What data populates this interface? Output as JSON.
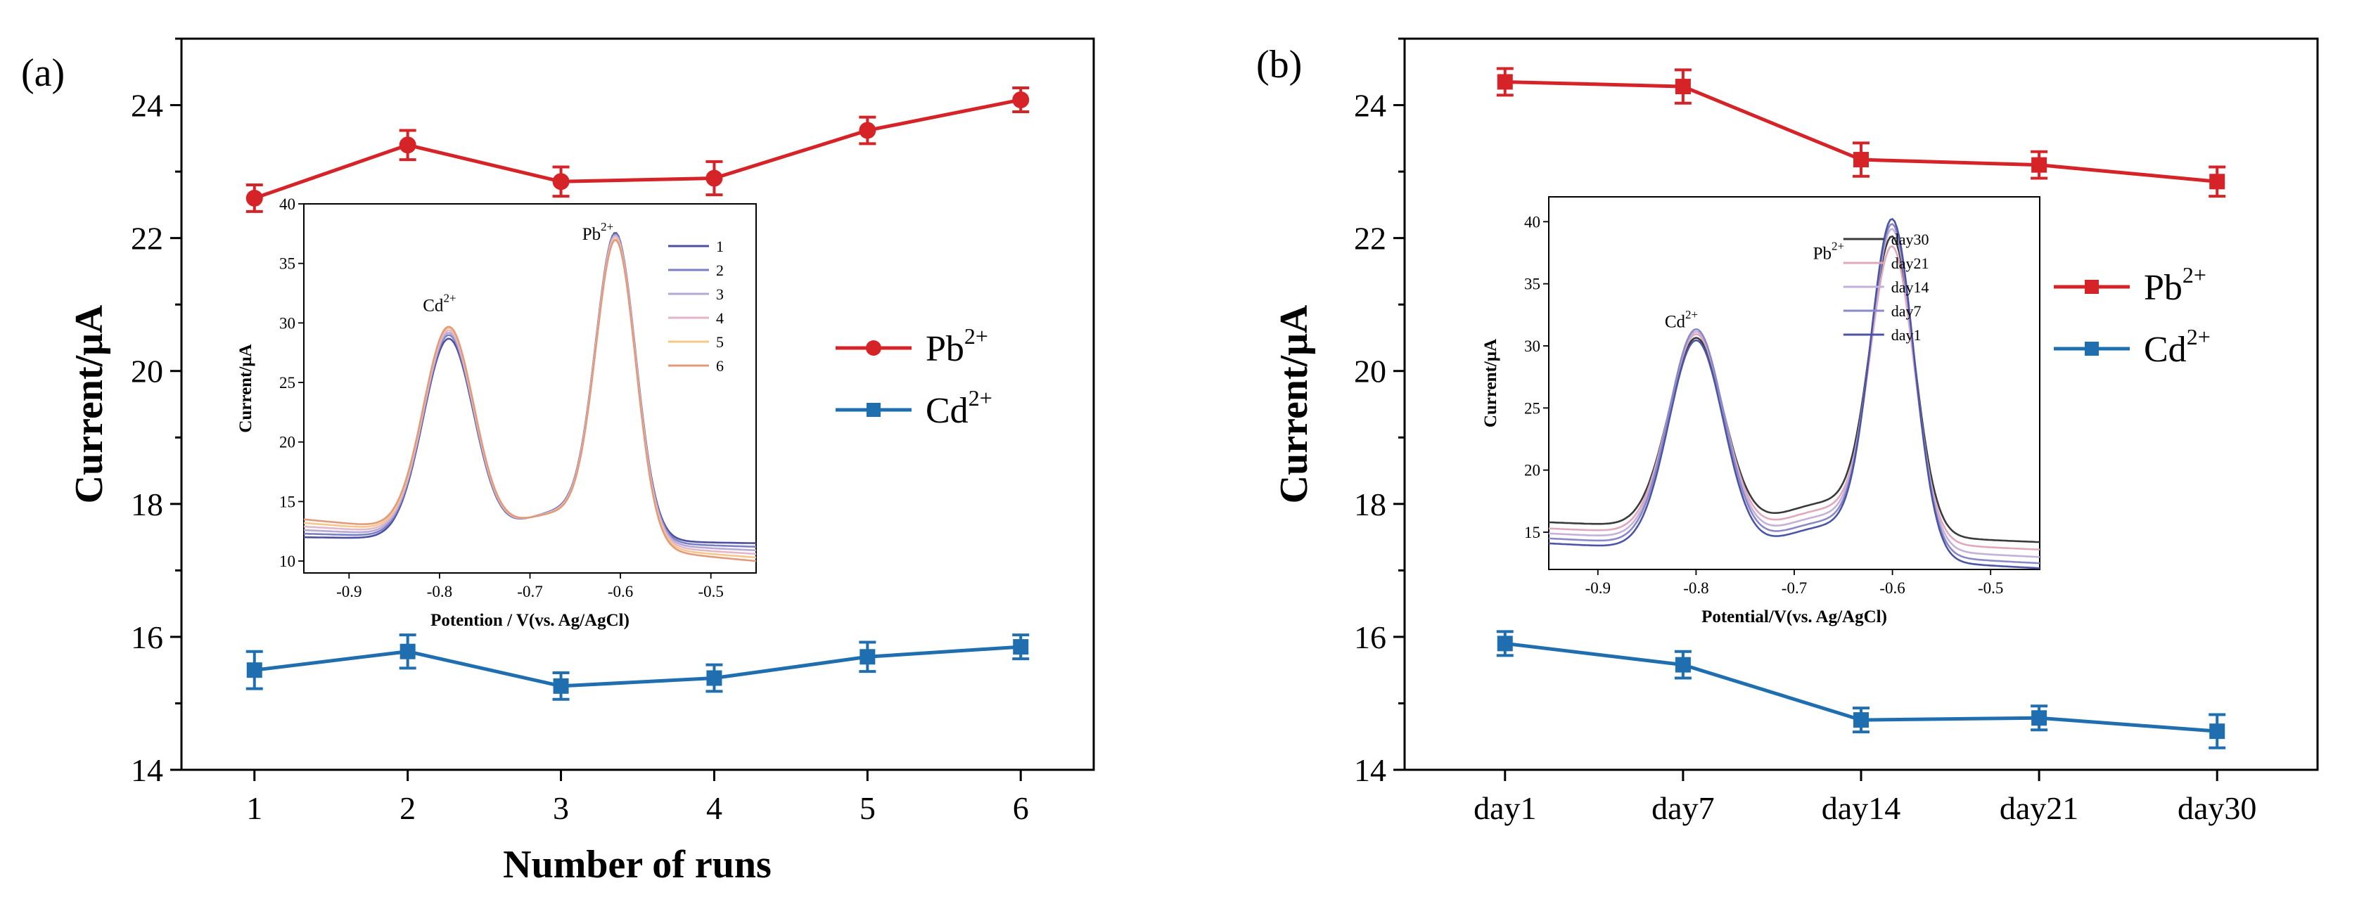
{
  "figure": {
    "panel_a_label": "(a)",
    "panel_b_label": "(b)"
  },
  "colors": {
    "pb": "#d62328",
    "cd": "#1f6fb0"
  },
  "chart_data": [
    {
      "type": "line",
      "panel": "(a)",
      "xlabel": "Number of runs",
      "ylabel": "Current/μA",
      "categories": [
        "1",
        "2",
        "3",
        "4",
        "5",
        "6"
      ],
      "ylim": [
        14,
        25
      ],
      "yticks": [
        14,
        16,
        18,
        20,
        22,
        24
      ],
      "legend_position": "right",
      "series": [
        {
          "name": "Pb2+",
          "ion": "Pb",
          "charge": "2+",
          "marker": "circle",
          "color": "#d62328",
          "values": [
            22.6,
            23.4,
            22.85,
            22.9,
            23.62,
            24.08
          ],
          "errors": [
            0.2,
            0.22,
            0.22,
            0.25,
            0.2,
            0.18
          ]
        },
        {
          "name": "Cd2+",
          "ion": "Cd",
          "charge": "2+",
          "marker": "square",
          "color": "#1f6fb0",
          "values": [
            15.5,
            15.78,
            15.26,
            15.38,
            15.7,
            15.85
          ],
          "errors": [
            0.28,
            0.25,
            0.2,
            0.2,
            0.22,
            0.18
          ]
        }
      ],
      "inset": {
        "type": "line",
        "xlabel": "Potention / V(vs. Ag/AgCl)",
        "ylabel": "Current/μA",
        "xlim": [
          -0.95,
          -0.45
        ],
        "ylim": [
          9,
          40
        ],
        "xticks": [
          -0.9,
          -0.8,
          -0.7,
          -0.6,
          -0.5
        ],
        "xtick_labels": [
          "-0.9",
          "-0.8",
          "-0.7",
          "-0.6",
          "-0.5"
        ],
        "yticks": [
          10,
          15,
          20,
          25,
          30,
          35,
          40
        ],
        "peak_labels": [
          {
            "ion": "Cd",
            "charge": "2+",
            "x": -0.8,
            "y": 31
          },
          {
            "ion": "Pb",
            "charge": "2+",
            "x": -0.625,
            "y": 37
          }
        ],
        "peaks": {
          "cd_potential": -0.79,
          "pb_potential": -0.605
        },
        "series": [
          {
            "name": "1",
            "color": "#4c4e9f",
            "base_left": 12.0,
            "base_right": 11.5,
            "cd_peak": 28.6,
            "pb_peak": 36.2
          },
          {
            "name": "2",
            "color": "#7a7fc6",
            "base_left": 12.3,
            "base_right": 11.2,
            "cd_peak": 28.9,
            "pb_peak": 36.1
          },
          {
            "name": "3",
            "color": "#b3a9d3",
            "base_left": 12.6,
            "base_right": 10.9,
            "cd_peak": 29.1,
            "pb_peak": 36.0
          },
          {
            "name": "4",
            "color": "#e3b6cc",
            "base_left": 12.9,
            "base_right": 10.6,
            "cd_peak": 29.3,
            "pb_peak": 35.9
          },
          {
            "name": "5",
            "color": "#f5c88a",
            "base_left": 13.2,
            "base_right": 10.3,
            "cd_peak": 29.5,
            "pb_peak": 35.7
          },
          {
            "name": "6",
            "color": "#e39a7c",
            "base_left": 13.5,
            "base_right": 10.0,
            "cd_peak": 29.6,
            "pb_peak": 35.6
          }
        ]
      }
    },
    {
      "type": "line",
      "panel": "(b)",
      "xlabel": "",
      "ylabel": "Current/μA",
      "categories": [
        "day1",
        "day7",
        "day14",
        "day21",
        "day30"
      ],
      "ylim": [
        14,
        25
      ],
      "yticks": [
        14,
        16,
        18,
        20,
        22,
        24
      ],
      "legend_position": "right",
      "series": [
        {
          "name": "Pb2+",
          "ion": "Pb",
          "charge": "2+",
          "marker": "square",
          "color": "#d62328",
          "values": [
            24.35,
            24.28,
            23.18,
            23.1,
            22.85
          ],
          "errors": [
            0.2,
            0.25,
            0.25,
            0.2,
            0.22
          ]
        },
        {
          "name": "Cd2+",
          "ion": "Cd",
          "charge": "2+",
          "marker": "square",
          "color": "#1f6fb0",
          "values": [
            15.9,
            15.58,
            14.75,
            14.78,
            14.58
          ],
          "errors": [
            0.18,
            0.2,
            0.18,
            0.18,
            0.25
          ]
        }
      ],
      "inset": {
        "type": "line",
        "xlabel": "Potential/V(vs. Ag/AgCl)",
        "ylabel": "Current/μA",
        "xlim": [
          -0.95,
          -0.45
        ],
        "ylim": [
          12,
          42
        ],
        "xticks": [
          -0.9,
          -0.8,
          -0.7,
          -0.6,
          -0.5
        ],
        "xtick_labels": [
          "-0.9",
          "-0.8",
          "-0.7",
          "-0.6",
          "-0.5"
        ],
        "yticks": [
          15,
          20,
          25,
          30,
          35,
          40
        ],
        "peak_labels": [
          {
            "ion": "Cd",
            "charge": "2+",
            "x": -0.815,
            "y": 31.5
          },
          {
            "ion": "Pb",
            "charge": "2+",
            "x": -0.665,
            "y": 37
          }
        ],
        "peaks": {
          "cd_potential": -0.8,
          "pb_potential": -0.6
        },
        "series": [
          {
            "name": "day30",
            "color": "#3a3a3a",
            "base_left": 15.8,
            "base_right": 14.2,
            "cd_peak": 30.6,
            "pb_peak": 37.6
          },
          {
            "name": "day21",
            "color": "#e0a7bd",
            "base_left": 15.3,
            "base_right": 13.6,
            "cd_peak": 30.9,
            "pb_peak": 36.8
          },
          {
            "name": "day14",
            "color": "#c5b0da",
            "base_left": 14.9,
            "base_right": 13.0,
            "cd_peak": 31.1,
            "pb_peak": 38.2
          },
          {
            "name": "day7",
            "color": "#8a88c8",
            "base_left": 14.5,
            "base_right": 12.5,
            "cd_peak": 31.3,
            "pb_peak": 38.6
          },
          {
            "name": "day1",
            "color": "#4a55a8",
            "base_left": 14.1,
            "base_right": 12.1,
            "cd_peak": 30.4,
            "pb_peak": 39.0
          }
        ]
      }
    }
  ]
}
